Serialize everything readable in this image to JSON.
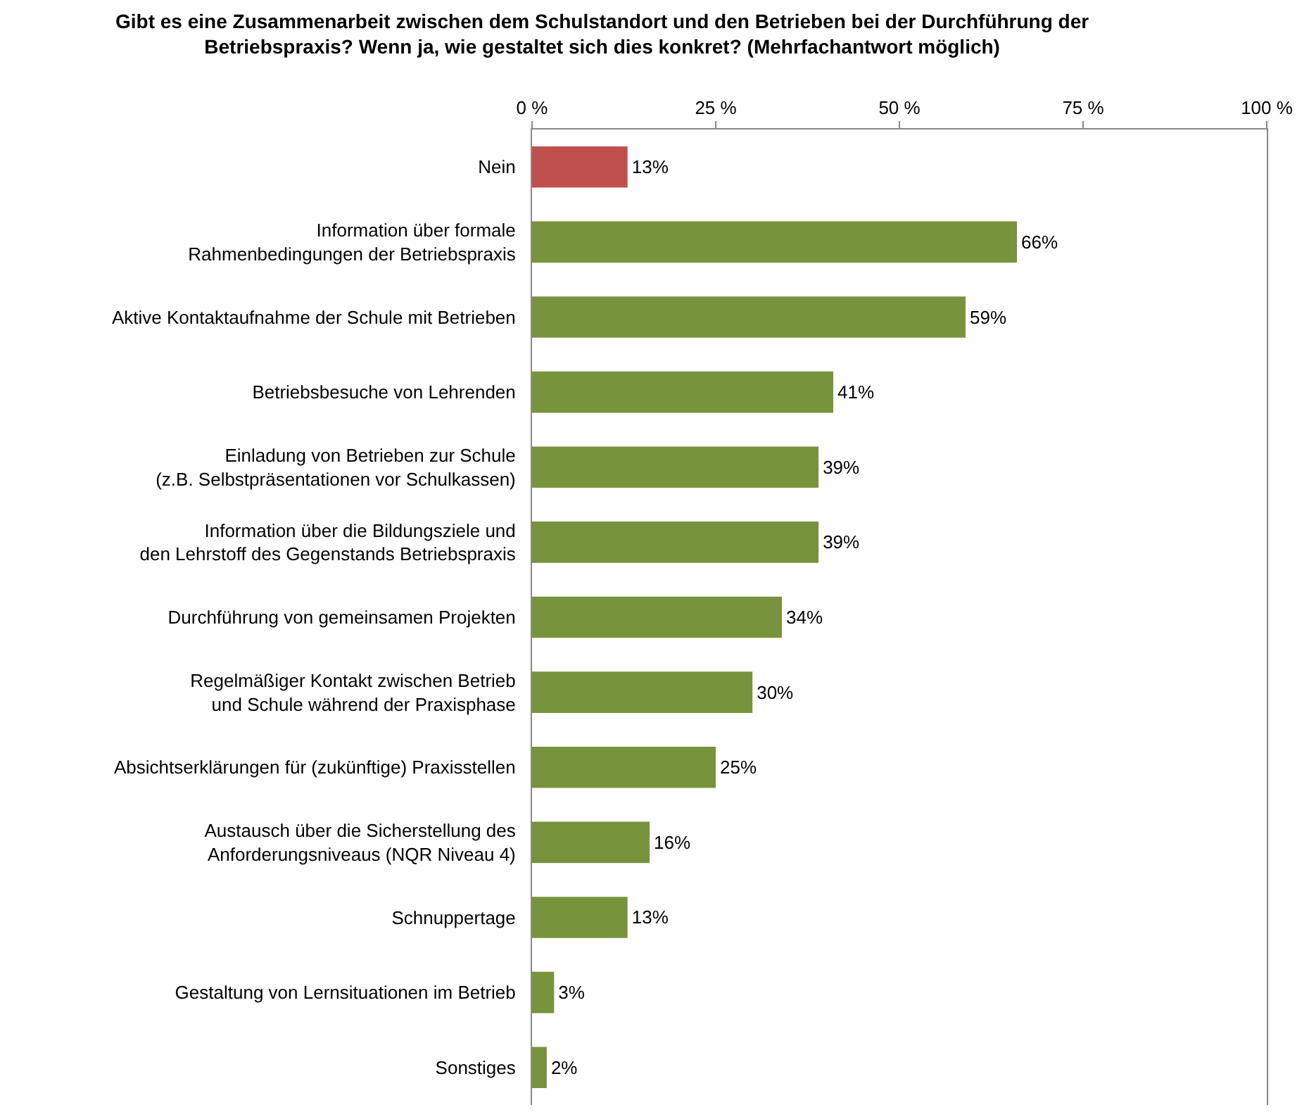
{
  "chart_data": {
    "type": "bar",
    "orientation": "horizontal",
    "title": "Gibt es eine Zusammenarbeit zwischen dem Schulstandort und den Betrieben bei der Durchführung der\nBetriebspraxis? Wenn ja, wie gestaltet sich dies konkret? (Mehrfachantwort möglich)",
    "categories": [
      "Nein",
      "Information über formale\nRahmenbedingungen der Betriebspraxis",
      "Aktive Kontaktaufnahme der Schule mit Betrieben",
      "Betriebsbesuche von Lehrenden",
      "Einladung von Betrieben zur Schule\n(z.B. Selbstpräsentationen vor Schulkassen)",
      "Information über die Bildungsziele und\nden Lehrstoff des Gegenstands Betriebspraxis",
      "Durchführung von gemeinsamen Projekten",
      "Regelmäßiger Kontakt zwischen Betrieb\nund Schule während der Praxisphase",
      "Absichtserklärungen für (zukünftige) Praxisstellen",
      "Austausch über die Sicherstellung des\nAnforderungsniveaus (NQR Niveau 4)",
      "Schnuppertage",
      "Gestaltung von Lernsituationen im Betrieb",
      "Sonstiges"
    ],
    "values": [
      13,
      66,
      59,
      41,
      39,
      39,
      34,
      30,
      25,
      16,
      13,
      3,
      2
    ],
    "value_labels": [
      "13%",
      "66%",
      "59%",
      "41%",
      "39%",
      "39%",
      "34%",
      "30%",
      "25%",
      "16%",
      "13%",
      "3%",
      "2%"
    ],
    "colors": [
      "#c0504d",
      "#77933c",
      "#77933c",
      "#77933c",
      "#77933c",
      "#77933c",
      "#77933c",
      "#77933c",
      "#77933c",
      "#77933c",
      "#77933c",
      "#77933c",
      "#77933c"
    ],
    "xlim": [
      0,
      100
    ],
    "xticks": [
      {
        "value": 0,
        "label": "0 %"
      },
      {
        "value": 25,
        "label": "25 %"
      },
      {
        "value": 50,
        "label": "50 %"
      },
      {
        "value": 75,
        "label": "75 %"
      },
      {
        "value": 100,
        "label": "100 %"
      }
    ],
    "grid": false
  }
}
